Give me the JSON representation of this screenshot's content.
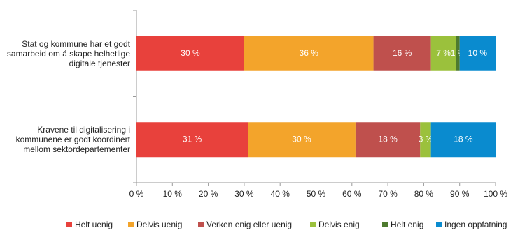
{
  "chart_data": {
    "type": "stacked-bar-horizontal",
    "categories": [
      "Stat og kommune har et godt samarbeid om å skape helhetlige digitale tjenester",
      "Kravene til digitalisering i kommunene er godt koordinert mellom sektordepartementer"
    ],
    "series": [
      {
        "name": "Helt uenig",
        "color": "#e8413c",
        "values": [
          30,
          31
        ],
        "value_labels": [
          "30 %",
          "31 %"
        ]
      },
      {
        "name": "Delvis uenig",
        "color": "#f3a42b",
        "values": [
          36,
          30
        ],
        "value_labels": [
          "36 %",
          "30 %"
        ]
      },
      {
        "name": "Verken enig eller uenig",
        "color": "#bf504d",
        "values": [
          16,
          18
        ],
        "value_labels": [
          "16 %",
          "18 %"
        ]
      },
      {
        "name": "Delvis enig",
        "color": "#9bc13c",
        "values": [
          7,
          3
        ],
        "value_labels": [
          "7 %",
          "3 %"
        ]
      },
      {
        "name": "Helt enig",
        "color": "#4e7a2e",
        "values": [
          1,
          0
        ],
        "value_labels": [
          "1 %",
          null
        ]
      },
      {
        "name": "Ingen oppfatning",
        "color": "#0a8bcf",
        "values": [
          10,
          18
        ],
        "value_labels": [
          "10 %",
          "18 %"
        ]
      }
    ],
    "xlim": [
      0,
      100
    ],
    "xticks": [
      {
        "value": 0,
        "label": "0 %"
      },
      {
        "value": 10,
        "label": "10 %"
      },
      {
        "value": 20,
        "label": "20 %"
      },
      {
        "value": 30,
        "label": "30 %"
      },
      {
        "value": 40,
        "label": "40 %"
      },
      {
        "value": 50,
        "label": "50 %"
      },
      {
        "value": 60,
        "label": "60 %"
      },
      {
        "value": 70,
        "label": "70 %"
      },
      {
        "value": 80,
        "label": "80 %"
      },
      {
        "value": 90,
        "label": "90 %"
      },
      {
        "value": 100,
        "label": "100 %"
      }
    ],
    "legend": "bottom"
  }
}
